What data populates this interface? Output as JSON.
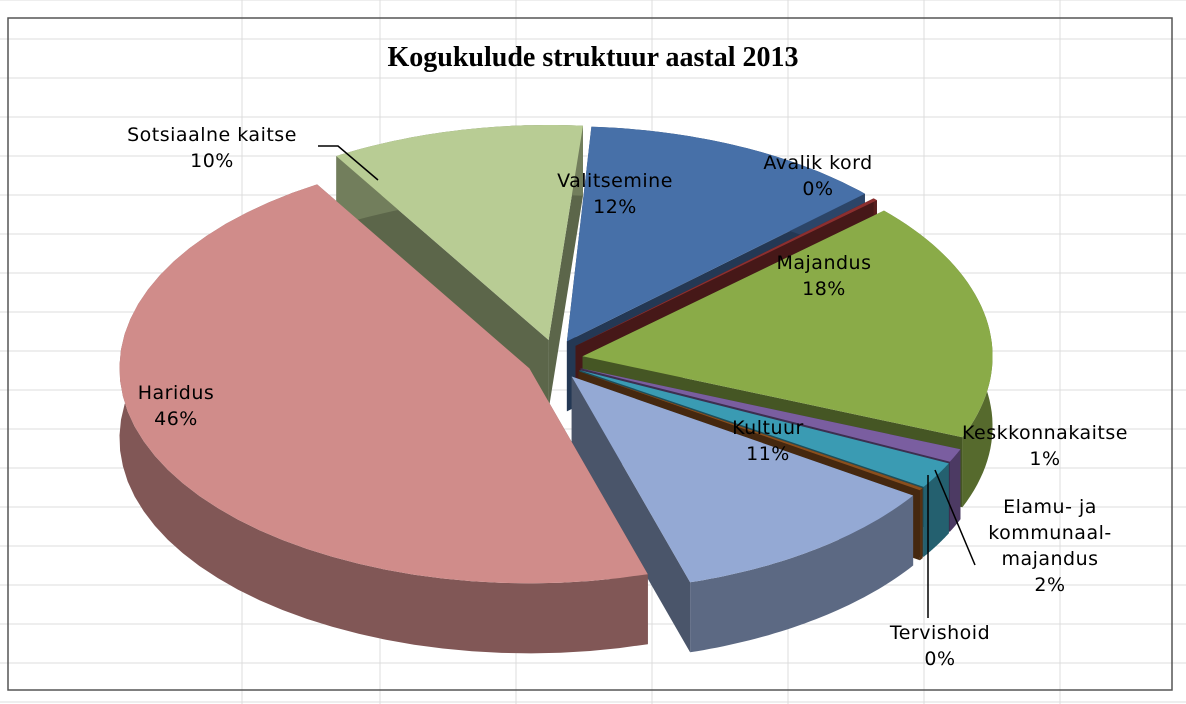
{
  "chart_data": {
    "type": "pie",
    "title": "Kogukulude struktuur  aastal 2013",
    "categories": [
      "Valitsemine",
      "Avalik kord",
      "Majandus",
      "Keskkonnakaitse",
      "Elamu- ja kommunaal-majandus",
      "Tervishoid",
      "Kultuur",
      "Haridus",
      "Sotsiaalne kaitse"
    ],
    "values": [
      12,
      0,
      18,
      1,
      2,
      0,
      11,
      46,
      10
    ],
    "value_labels": [
      "12%",
      "0%",
      "18%",
      "1%",
      "2%",
      "0%",
      "11%",
      "46%",
      "10%"
    ],
    "colors": [
      "#4770a8",
      "#8c2f2f",
      "#8aab48",
      "#7a5ea0",
      "#3a9bb3",
      "#8a4f1e",
      "#94a9d4",
      "#d08c8a",
      "#b8cc94"
    ]
  }
}
